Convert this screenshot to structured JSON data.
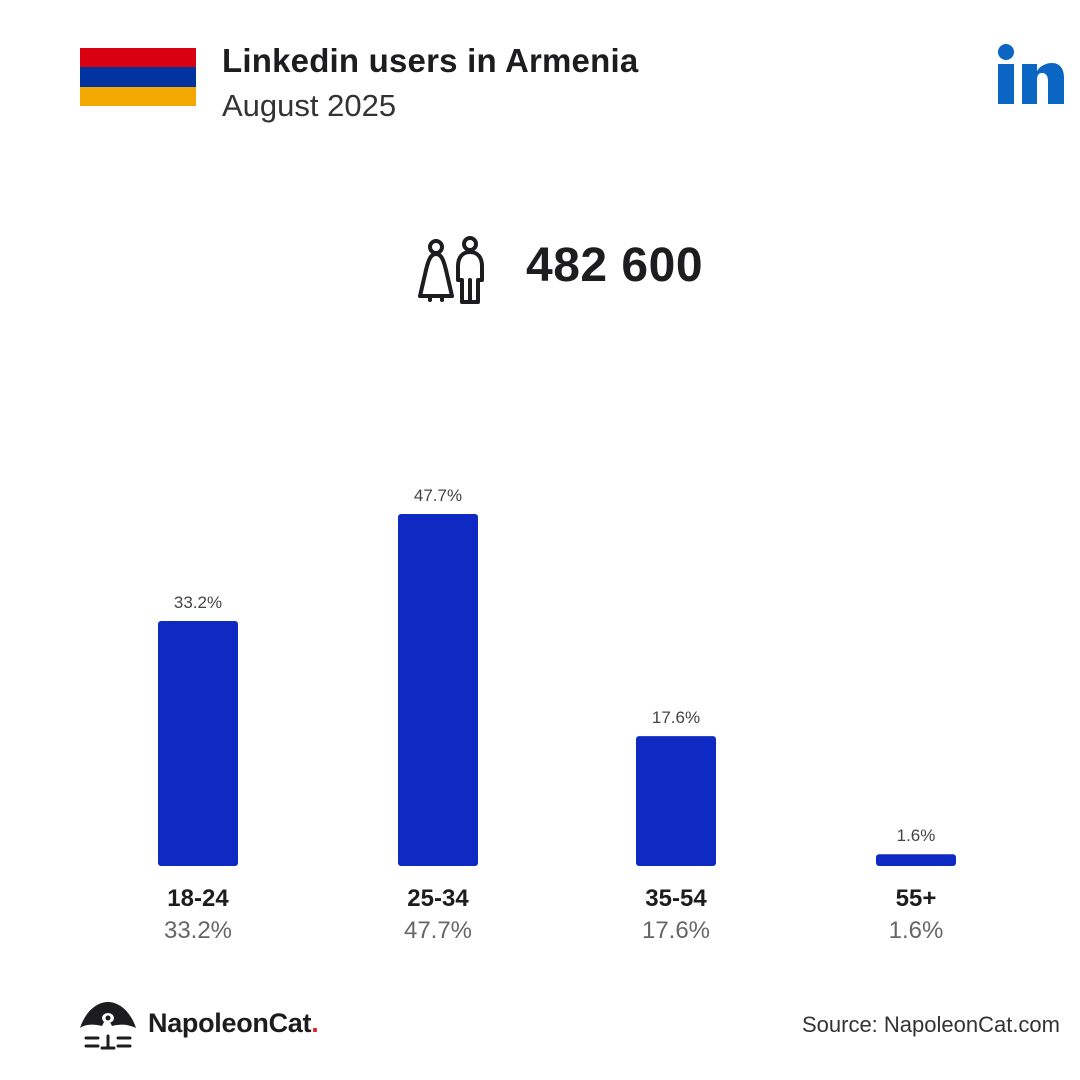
{
  "header": {
    "title": "Linkedin users in Armenia",
    "subtitle": "August 2025",
    "flag_colors": [
      "#d90012",
      "#0033a0",
      "#f2a800"
    ],
    "platform_icon": "linkedin-icon",
    "platform_color": "#0a66c2"
  },
  "summary": {
    "icon": "users-icon",
    "total": "482 600"
  },
  "chart_data": {
    "type": "bar",
    "categories": [
      "18-24",
      "25-34",
      "35-54",
      "55+"
    ],
    "values": [
      33.2,
      47.7,
      17.6,
      1.6
    ],
    "value_labels": [
      "33.2%",
      "47.7%",
      "17.6%",
      "1.6%"
    ],
    "title": "",
    "xlabel": "",
    "ylabel": "",
    "ylim": [
      0,
      47.7
    ],
    "grid": false,
    "bar_color": "#0f2ac2"
  },
  "footer": {
    "brand_name": "NapoleonCat",
    "brand_dot": ".",
    "source": "Source: NapoleonCat.com"
  }
}
